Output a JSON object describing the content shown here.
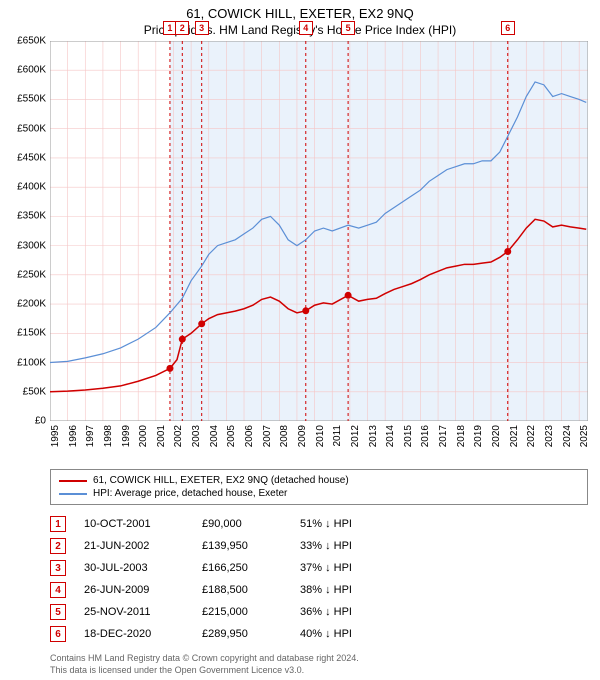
{
  "title": "61, COWICK HILL, EXETER, EX2 9NQ",
  "subtitle": "Price paid vs. HM Land Registry's House Price Index (HPI)",
  "chart": {
    "type": "line",
    "background_color": "#ffffff",
    "grid_color": "#f5c6c6",
    "x_range": [
      1995,
      2025.5
    ],
    "y_range": [
      0,
      650000
    ],
    "y_ticks": [
      0,
      50000,
      100000,
      150000,
      200000,
      250000,
      300000,
      350000,
      400000,
      450000,
      500000,
      550000,
      600000,
      650000
    ],
    "y_tick_labels": [
      "£0",
      "£50K",
      "£100K",
      "£150K",
      "£200K",
      "£250K",
      "£300K",
      "£350K",
      "£400K",
      "£450K",
      "£500K",
      "£550K",
      "£600K",
      "£650K"
    ],
    "x_ticks": [
      1995,
      1996,
      1997,
      1998,
      1999,
      2000,
      2001,
      2002,
      2003,
      2004,
      2005,
      2006,
      2007,
      2008,
      2009,
      2010,
      2011,
      2012,
      2013,
      2014,
      2015,
      2016,
      2017,
      2018,
      2019,
      2020,
      2021,
      2022,
      2023,
      2024,
      2025
    ],
    "shaded_x_start": 2001.8,
    "shaded_x_end": 2025.5,
    "shade_color": "#eaf2fb",
    "series": [
      {
        "name": "HPI: Average price, detached house, Exeter",
        "color": "#5b8fd6",
        "line_width": 1.2,
        "data": [
          [
            1995,
            100000
          ],
          [
            1996,
            102000
          ],
          [
            1997,
            108000
          ],
          [
            1998,
            115000
          ],
          [
            1999,
            125000
          ],
          [
            2000,
            140000
          ],
          [
            2001,
            160000
          ],
          [
            2001.8,
            185000
          ],
          [
            2002.5,
            210000
          ],
          [
            2003,
            240000
          ],
          [
            2003.6,
            265000
          ],
          [
            2004,
            285000
          ],
          [
            2004.5,
            300000
          ],
          [
            2005,
            305000
          ],
          [
            2005.5,
            310000
          ],
          [
            2006,
            320000
          ],
          [
            2006.5,
            330000
          ],
          [
            2007,
            345000
          ],
          [
            2007.5,
            350000
          ],
          [
            2008,
            335000
          ],
          [
            2008.5,
            310000
          ],
          [
            2009,
            300000
          ],
          [
            2009.5,
            310000
          ],
          [
            2010,
            325000
          ],
          [
            2010.5,
            330000
          ],
          [
            2011,
            325000
          ],
          [
            2011.9,
            335000
          ],
          [
            2012.5,
            330000
          ],
          [
            2013,
            335000
          ],
          [
            2013.5,
            340000
          ],
          [
            2014,
            355000
          ],
          [
            2014.5,
            365000
          ],
          [
            2015,
            375000
          ],
          [
            2015.5,
            385000
          ],
          [
            2016,
            395000
          ],
          [
            2016.5,
            410000
          ],
          [
            2017,
            420000
          ],
          [
            2017.5,
            430000
          ],
          [
            2018,
            435000
          ],
          [
            2018.5,
            440000
          ],
          [
            2019,
            440000
          ],
          [
            2019.5,
            445000
          ],
          [
            2020,
            445000
          ],
          [
            2020.5,
            460000
          ],
          [
            2021,
            490000
          ],
          [
            2021.5,
            520000
          ],
          [
            2022,
            555000
          ],
          [
            2022.5,
            580000
          ],
          [
            2023,
            575000
          ],
          [
            2023.5,
            555000
          ],
          [
            2024,
            560000
          ],
          [
            2024.5,
            555000
          ],
          [
            2025,
            550000
          ],
          [
            2025.4,
            545000
          ]
        ]
      },
      {
        "name": "61, COWICK HILL, EXETER, EX2 9NQ (detached house)",
        "color": "#d00000",
        "line_width": 1.5,
        "data": [
          [
            1995,
            50000
          ],
          [
            1996,
            51000
          ],
          [
            1997,
            53000
          ],
          [
            1998,
            56000
          ],
          [
            1999,
            60000
          ],
          [
            2000,
            68000
          ],
          [
            2001,
            78000
          ],
          [
            2001.8,
            90000
          ],
          [
            2002.2,
            105000
          ],
          [
            2002.5,
            139950
          ],
          [
            2003,
            150000
          ],
          [
            2003.6,
            166250
          ],
          [
            2004,
            175000
          ],
          [
            2004.5,
            182000
          ],
          [
            2005,
            185000
          ],
          [
            2005.5,
            188000
          ],
          [
            2006,
            192000
          ],
          [
            2006.5,
            198000
          ],
          [
            2007,
            208000
          ],
          [
            2007.5,
            212000
          ],
          [
            2008,
            205000
          ],
          [
            2008.5,
            192000
          ],
          [
            2009,
            185000
          ],
          [
            2009.5,
            188500
          ],
          [
            2010,
            198000
          ],
          [
            2010.5,
            202000
          ],
          [
            2011,
            200000
          ],
          [
            2011.9,
            215000
          ],
          [
            2012.5,
            205000
          ],
          [
            2013,
            208000
          ],
          [
            2013.5,
            210000
          ],
          [
            2014,
            218000
          ],
          [
            2014.5,
            225000
          ],
          [
            2015,
            230000
          ],
          [
            2015.5,
            235000
          ],
          [
            2016,
            242000
          ],
          [
            2016.5,
            250000
          ],
          [
            2017,
            256000
          ],
          [
            2017.5,
            262000
          ],
          [
            2018,
            265000
          ],
          [
            2018.5,
            268000
          ],
          [
            2019,
            268000
          ],
          [
            2019.5,
            270000
          ],
          [
            2020,
            272000
          ],
          [
            2020.5,
            280000
          ],
          [
            2020.95,
            289950
          ],
          [
            2021.5,
            310000
          ],
          [
            2022,
            330000
          ],
          [
            2022.5,
            345000
          ],
          [
            2023,
            342000
          ],
          [
            2023.5,
            332000
          ],
          [
            2024,
            335000
          ],
          [
            2024.5,
            332000
          ],
          [
            2025,
            330000
          ],
          [
            2025.4,
            328000
          ]
        ]
      }
    ],
    "sale_markers": [
      {
        "n": "1",
        "x": 2001.8,
        "y": 90000
      },
      {
        "n": "2",
        "x": 2002.5,
        "y": 139950
      },
      {
        "n": "3",
        "x": 2003.6,
        "y": 166250
      },
      {
        "n": "4",
        "x": 2009.5,
        "y": 188500
      },
      {
        "n": "5",
        "x": 2011.9,
        "y": 215000
      },
      {
        "n": "6",
        "x": 2020.95,
        "y": 289950
      }
    ],
    "vline_color": "#d00000"
  },
  "legend": [
    {
      "color": "#d00000",
      "label": "61, COWICK HILL, EXETER, EX2 9NQ (detached house)"
    },
    {
      "color": "#5b8fd6",
      "label": "HPI: Average price, detached house, Exeter"
    }
  ],
  "sales": [
    {
      "n": "1",
      "date": "10-OCT-2001",
      "price": "£90,000",
      "diff": "51% ↓ HPI"
    },
    {
      "n": "2",
      "date": "21-JUN-2002",
      "price": "£139,950",
      "diff": "33% ↓ HPI"
    },
    {
      "n": "3",
      "date": "30-JUL-2003",
      "price": "£166,250",
      "diff": "37% ↓ HPI"
    },
    {
      "n": "4",
      "date": "26-JUN-2009",
      "price": "£188,500",
      "diff": "38% ↓ HPI"
    },
    {
      "n": "5",
      "date": "25-NOV-2011",
      "price": "£215,000",
      "diff": "36% ↓ HPI"
    },
    {
      "n": "6",
      "date": "18-DEC-2020",
      "price": "£289,950",
      "diff": "40% ↓ HPI"
    }
  ],
  "footer_line1": "Contains HM Land Registry data © Crown copyright and database right 2024.",
  "footer_line2": "This data is licensed under the Open Government Licence v3.0."
}
